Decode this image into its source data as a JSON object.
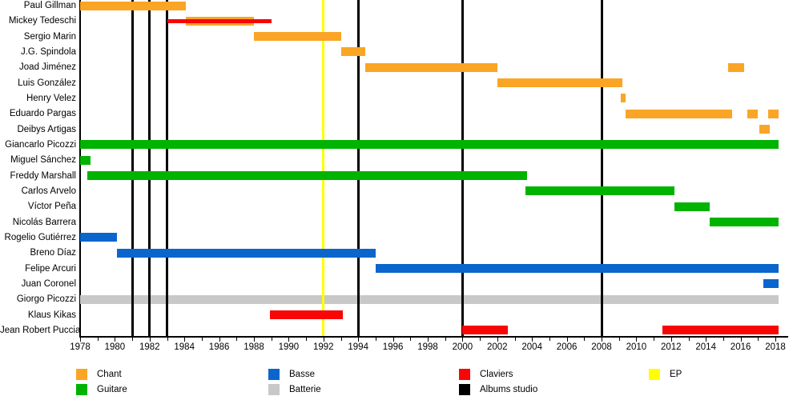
{
  "chart_data": {
    "type": "timeline",
    "description": "Band members timeline (Gantt-style) from 1978 to 2018 with roles as colored bars and release events as vertical lines",
    "x_axis": {
      "min": 1978,
      "max": 2018.3,
      "minor_tick_step": 1,
      "major_tick_step": 2,
      "tick_labels": [
        1978,
        1980,
        1982,
        1984,
        1986,
        1988,
        1990,
        1992,
        1994,
        1996,
        1998,
        2000,
        2002,
        2004,
        2006,
        2008,
        2010,
        2012,
        2014,
        2016,
        2018
      ]
    },
    "colors": {
      "chant": "#FAA525",
      "guitare": "#00B300",
      "basse": "#0A66CC",
      "batterie": "#C8C8C8",
      "claviers": "#F80505",
      "album": "#000000",
      "ep": "#FFFF00"
    },
    "rows": [
      {
        "name": "Paul Gillman",
        "bars": [
          {
            "role": "chant",
            "start": 1978.0,
            "end": 1984.1
          }
        ]
      },
      {
        "name": "Mickey Tedeschi",
        "bars": [
          {
            "role": "chant",
            "start": 1984.1,
            "end": 1988.0
          },
          {
            "role": "claviers",
            "start": 1983.0,
            "end": 1989.0,
            "thin": true
          }
        ]
      },
      {
        "name": "Sergio Marin",
        "bars": [
          {
            "role": "chant",
            "start": 1988.0,
            "end": 1993.0
          }
        ]
      },
      {
        "name": "J.G. Spindola",
        "bars": [
          {
            "role": "chant",
            "start": 1993.0,
            "end": 1994.4
          }
        ]
      },
      {
        "name": "Joad Jiménez",
        "bars": [
          {
            "role": "chant",
            "start": 1994.4,
            "end": 2002.0
          },
          {
            "role": "chant",
            "start": 2015.3,
            "end": 2016.2
          }
        ]
      },
      {
        "name": "Luis González",
        "bars": [
          {
            "role": "chant",
            "start": 2002.0,
            "end": 2009.2
          }
        ]
      },
      {
        "name": "Henry Velez",
        "bars": [
          {
            "role": "chant",
            "start": 2009.1,
            "end": 2009.4
          }
        ]
      },
      {
        "name": "Eduardo Pargas",
        "bars": [
          {
            "role": "chant",
            "start": 2009.4,
            "end": 2015.5
          },
          {
            "role": "chant",
            "start": 2016.4,
            "end": 2017.0
          },
          {
            "role": "chant",
            "start": 2017.6,
            "end": 2018.2
          }
        ]
      },
      {
        "name": "Deibys Artigas",
        "bars": [
          {
            "role": "chant",
            "start": 2017.1,
            "end": 2017.7
          }
        ]
      },
      {
        "name": "Giancarlo Picozzi",
        "bars": [
          {
            "role": "guitare",
            "start": 1978.0,
            "end": 2018.2
          }
        ]
      },
      {
        "name": "Miguel Sánchez",
        "bars": [
          {
            "role": "guitare",
            "start": 1978.0,
            "end": 1978.6
          }
        ]
      },
      {
        "name": "Freddy Marshall",
        "bars": [
          {
            "role": "guitare",
            "start": 1978.4,
            "end": 2003.7
          }
        ]
      },
      {
        "name": "Carlos Arvelo",
        "bars": [
          {
            "role": "guitare",
            "start": 2003.6,
            "end": 2012.2
          }
        ]
      },
      {
        "name": "Víctor Peña",
        "bars": [
          {
            "role": "guitare",
            "start": 2012.2,
            "end": 2014.2
          }
        ]
      },
      {
        "name": "Nicolás Barrera",
        "bars": [
          {
            "role": "guitare",
            "start": 2014.2,
            "end": 2018.2
          }
        ]
      },
      {
        "name": "Rogelio Gutiérrez",
        "bars": [
          {
            "role": "basse",
            "start": 1978.0,
            "end": 1980.1
          }
        ]
      },
      {
        "name": "Breno Díaz",
        "bars": [
          {
            "role": "basse",
            "start": 1980.1,
            "end": 1995.0
          }
        ]
      },
      {
        "name": "Felipe Arcuri",
        "bars": [
          {
            "role": "basse",
            "start": 1995.0,
            "end": 2018.2
          }
        ]
      },
      {
        "name": "Juan Coronel",
        "bars": [
          {
            "role": "basse",
            "start": 2017.3,
            "end": 2018.2
          }
        ]
      },
      {
        "name": "Giorgo Picozzi",
        "bars": [
          {
            "role": "batterie",
            "start": 1978.0,
            "end": 2018.2
          }
        ]
      },
      {
        "name": "Klaus Kikas",
        "bars": [
          {
            "role": "claviers",
            "start": 1988.9,
            "end": 1993.1
          }
        ]
      },
      {
        "name": "Jean Robert Puccia",
        "bars": [
          {
            "role": "claviers",
            "start": 2000.0,
            "end": 2002.6
          },
          {
            "role": "claviers",
            "start": 2011.5,
            "end": 2018.2
          }
        ]
      }
    ],
    "events": [
      {
        "type": "album",
        "year": 1981
      },
      {
        "type": "album",
        "year": 1982
      },
      {
        "type": "album",
        "year": 1983
      },
      {
        "type": "ep",
        "year": 1992
      },
      {
        "type": "album",
        "year": 1994
      },
      {
        "type": "album",
        "year": 2000
      },
      {
        "type": "album",
        "year": 2008
      }
    ],
    "legend": {
      "columns": [
        [
          {
            "label": "Chant",
            "role": "chant"
          },
          {
            "label": "Guitare",
            "role": "guitare"
          }
        ],
        [
          {
            "label": "Basse",
            "role": "basse"
          },
          {
            "label": "Batterie",
            "role": "batterie"
          }
        ],
        [
          {
            "label": "Claviers",
            "role": "claviers"
          },
          {
            "label": "Albums studio",
            "role": "album"
          }
        ],
        [
          {
            "label": "EP",
            "role": "ep"
          }
        ]
      ]
    }
  }
}
